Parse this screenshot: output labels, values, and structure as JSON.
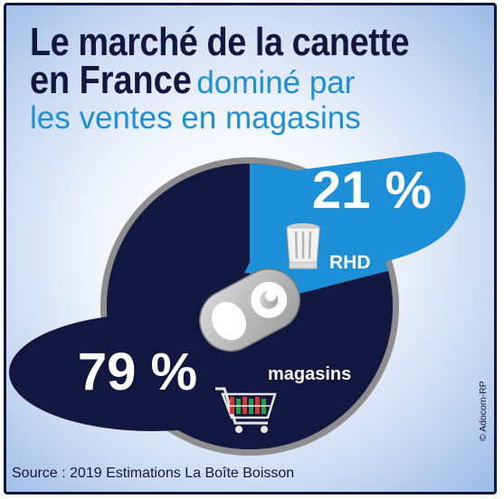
{
  "title": {
    "line1": "Le marché de la canette",
    "line2_bold": "en France",
    "line2_light": "dominé par",
    "line3": "les ventes en magasins"
  },
  "chart_data": {
    "type": "pie",
    "slices": [
      {
        "label": "RHD",
        "value": 21,
        "value_label": "21 %",
        "color": "#1d8fd6"
      },
      {
        "label": "magasins",
        "value": 79,
        "value_label": "79 %",
        "color": "#12173f"
      }
    ]
  },
  "icons": [
    "chef-hat-icon",
    "shopping-cart-icon",
    "can-tab-icon"
  ],
  "source": "Source : 2019 Estimations La Boîte Boisson",
  "copyright": "© Adocom-RP"
}
